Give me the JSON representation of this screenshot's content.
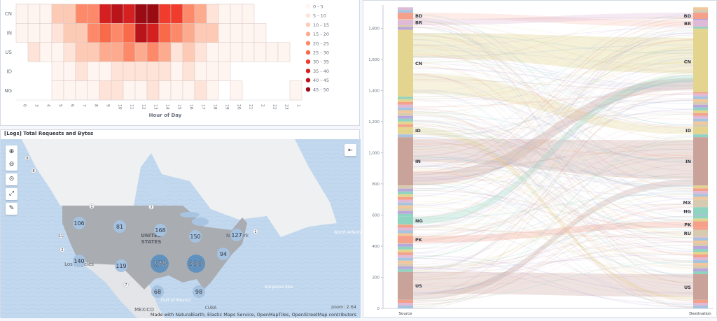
{
  "heatmap_panel": {
    "chart_data": {
      "type": "heatmap",
      "title": "",
      "xlabel": "Hour of Day",
      "ylabel": "",
      "x_categories": [
        "0",
        "3",
        "4",
        "5",
        "6",
        "7",
        "8",
        "9",
        "10",
        "11",
        "12",
        "13",
        "14",
        "15",
        "16",
        "17",
        "18",
        "19",
        "20",
        "21",
        "2",
        "22",
        "23",
        "1"
      ],
      "y_categories": [
        "CN",
        "IN",
        "US",
        "ID",
        "NG"
      ],
      "values": [
        [
          3,
          3,
          3,
          12,
          12,
          22,
          22,
          36,
          40,
          36,
          48,
          48,
          32,
          32,
          24,
          18,
          8,
          4,
          4,
          4,
          null,
          null,
          null,
          null
        ],
        [
          3,
          3,
          3,
          8,
          12,
          12,
          22,
          27,
          23,
          27,
          40,
          36,
          27,
          22,
          17,
          14,
          14,
          4,
          4,
          4,
          4,
          null,
          null,
          null
        ],
        [
          null,
          7,
          3,
          2,
          8,
          14,
          14,
          18,
          18,
          22,
          17,
          21,
          17,
          7,
          14,
          8,
          3,
          3,
          3,
          3,
          3,
          3,
          3,
          null
        ],
        [
          null,
          null,
          null,
          3,
          3,
          7,
          2,
          2,
          7,
          7,
          8,
          8,
          7,
          3,
          7,
          3,
          3,
          3,
          null,
          null,
          null,
          null,
          null,
          null
        ],
        [
          null,
          null,
          null,
          3,
          3,
          3,
          3,
          7,
          7,
          3,
          3,
          7,
          3,
          3,
          3,
          8,
          3,
          null,
          3,
          null,
          null,
          null,
          null,
          3
        ]
      ],
      "legend": {
        "position": "right",
        "ranges": [
          "0 - 5",
          "5 - 10",
          "10 - 15",
          "15 - 20",
          "20 - 25",
          "25 - 30",
          "30 - 35",
          "35 - 40",
          "40 - 45",
          "45 - 50"
        ],
        "colors": [
          "#fff5f0",
          "#fee4d8",
          "#fdcab5",
          "#fcab8f",
          "#fc8a6a",
          "#f96a4a",
          "#ef3c2c",
          "#d42020",
          "#b91419",
          "#990c13"
        ]
      }
    }
  },
  "map_panel": {
    "title": "[Logs] Total Requests and Bytes",
    "controls": [
      "zoom-in",
      "zoom-out",
      "set-view",
      "fit-data",
      "tools"
    ],
    "clusters": [
      {
        "label": "8"
      },
      {
        "label": "8"
      },
      {
        "label": "1"
      },
      {
        "label": "2"
      },
      {
        "label": "106"
      },
      {
        "label": "81"
      },
      {
        "label": "168"
      },
      {
        "label": "150"
      },
      {
        "label": "127"
      },
      {
        "label": "11"
      },
      {
        "label": "2"
      },
      {
        "label": "140"
      },
      {
        "label": "119"
      },
      {
        "label": "278"
      },
      {
        "label": "333"
      },
      {
        "label": "94"
      },
      {
        "label": "7"
      },
      {
        "label": "68"
      },
      {
        "label": "98"
      },
      {
        "label": "1"
      }
    ],
    "places": [
      "UNITED STATES",
      "Los Angeles",
      "New York",
      "MEXICO",
      "CUBA",
      "North Atlantic Ocean",
      "Sargasso Sea",
      "Gulf of Mexico"
    ],
    "zoom_label": "zoom: 2.64",
    "attribution": "Made with NaturalEarth, Elastic Maps Service, OpenMapTiles, OpenStreetMap contributors"
  },
  "sankey_panel": {
    "chart_data": {
      "type": "sankey",
      "y_ticks": [
        "0",
        "200",
        "400",
        "600",
        "800",
        "1,000",
        "1,200",
        "1,400",
        "1,600",
        "1,800"
      ],
      "ylim": [
        0,
        1950
      ],
      "x_labels": [
        "Source",
        "Destination"
      ],
      "source_nodes": [
        {
          "label": "BD",
          "start": 1860,
          "end": 1900,
          "color": "#f4a08a"
        },
        {
          "label": "BR",
          "start": 1820,
          "end": 1855,
          "color": "#dfbad6"
        },
        {
          "label": "CN",
          "start": 1360,
          "end": 1790,
          "color": "#e3d58f"
        },
        {
          "label": "ID",
          "start": 1120,
          "end": 1165,
          "color": "#e3d58f"
        },
        {
          "label": "IN",
          "start": 790,
          "end": 1100,
          "color": "#c9a29a"
        },
        {
          "label": "NG",
          "start": 540,
          "end": 590,
          "color": "#8fd3c1"
        },
        {
          "label": "PK",
          "start": 420,
          "end": 465,
          "color": "#f4a08a"
        },
        {
          "label": "US",
          "start": 55,
          "end": 235,
          "color": "#c9a29a"
        }
      ],
      "destination_nodes": [
        {
          "label": "BD",
          "start": 1860,
          "end": 1900,
          "color": "#f4a08a"
        },
        {
          "label": "BR",
          "start": 1810,
          "end": 1850,
          "color": "#dfbad6"
        },
        {
          "label": "CN",
          "start": 1390,
          "end": 1780,
          "color": "#e3d58f"
        },
        {
          "label": "ID",
          "start": 1120,
          "end": 1165,
          "color": "#e3d58f"
        },
        {
          "label": "IN",
          "start": 790,
          "end": 1100,
          "color": "#c9a29a"
        },
        {
          "label": "MX",
          "start": 660,
          "end": 700,
          "color": "#d6cab0"
        },
        {
          "label": "NG",
          "start": 600,
          "end": 650,
          "color": "#8fd3c1"
        },
        {
          "label": "PK",
          "start": 520,
          "end": 560,
          "color": "#f4a08a"
        },
        {
          "label": "RU",
          "start": 460,
          "end": 505,
          "color": "#d6cab0"
        },
        {
          "label": "US",
          "start": 55,
          "end": 220,
          "color": "#c9a29a"
        }
      ]
    }
  }
}
